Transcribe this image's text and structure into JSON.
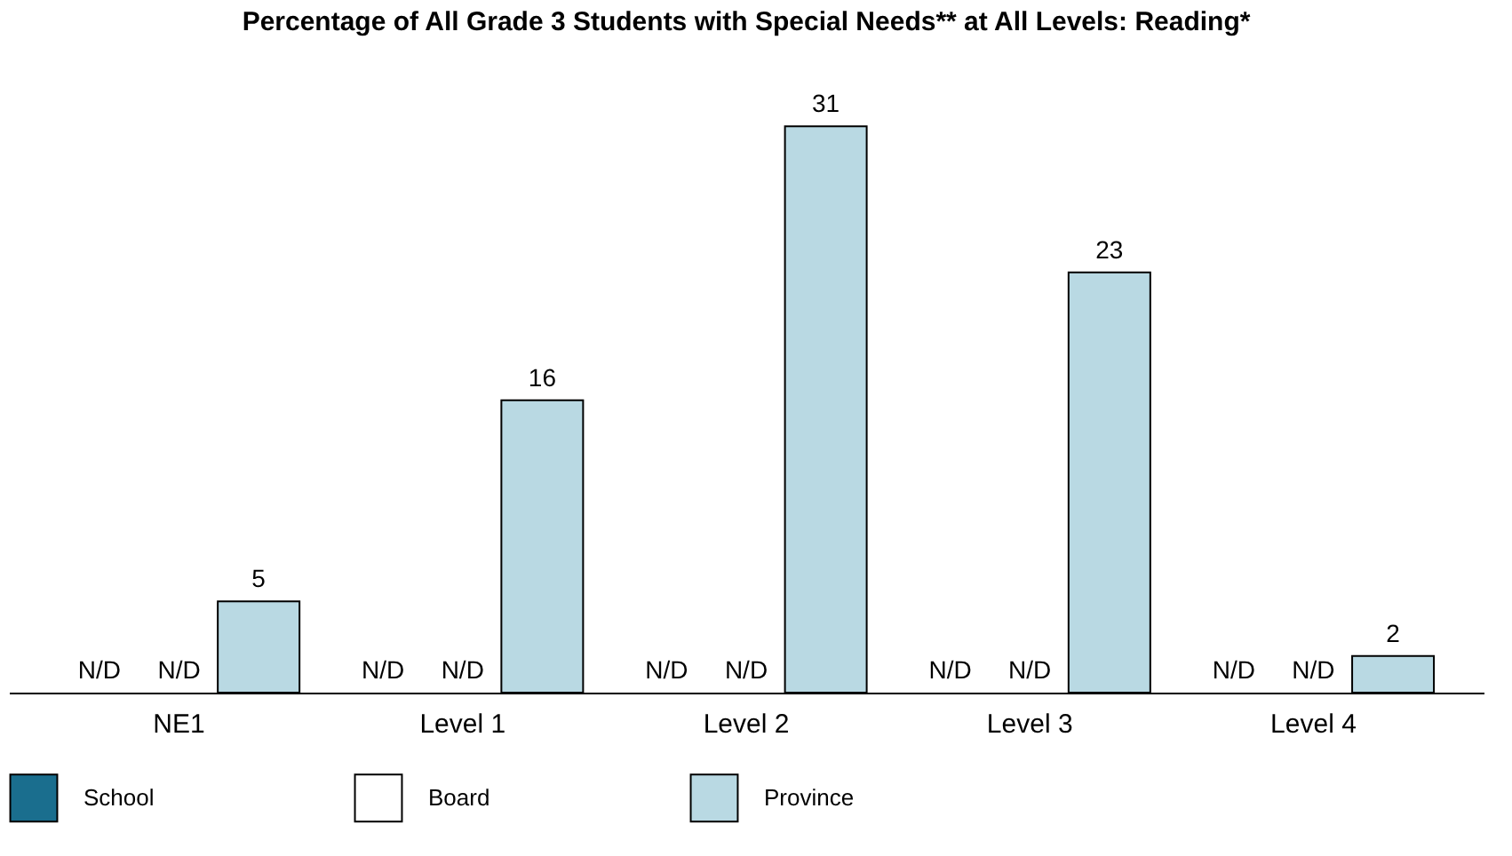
{
  "chart_data": {
    "type": "bar",
    "title": "Percentage of All Grade 3 Students with Special Needs** at All Levels: Reading*",
    "categories": [
      "NE1",
      "Level 1",
      "Level 2",
      "Level 3",
      "Level 4"
    ],
    "legend": "bottom",
    "series": [
      {
        "name": "School",
        "color": "#1a6e8e",
        "values": [
          null,
          null,
          null,
          null,
          null
        ],
        "value_labels": [
          "N/D",
          "N/D",
          "N/D",
          "N/D",
          "N/D"
        ]
      },
      {
        "name": "Board",
        "color": "#ffffff",
        "values": [
          null,
          null,
          null,
          null,
          null
        ],
        "value_labels": [
          "N/D",
          "N/D",
          "N/D",
          "N/D",
          "N/D"
        ]
      },
      {
        "name": "Province",
        "color": "#b9d9e3",
        "values": [
          5,
          16,
          31,
          23,
          2
        ],
        "value_labels": [
          "5",
          "16",
          "31",
          "23",
          "2"
        ]
      }
    ]
  }
}
